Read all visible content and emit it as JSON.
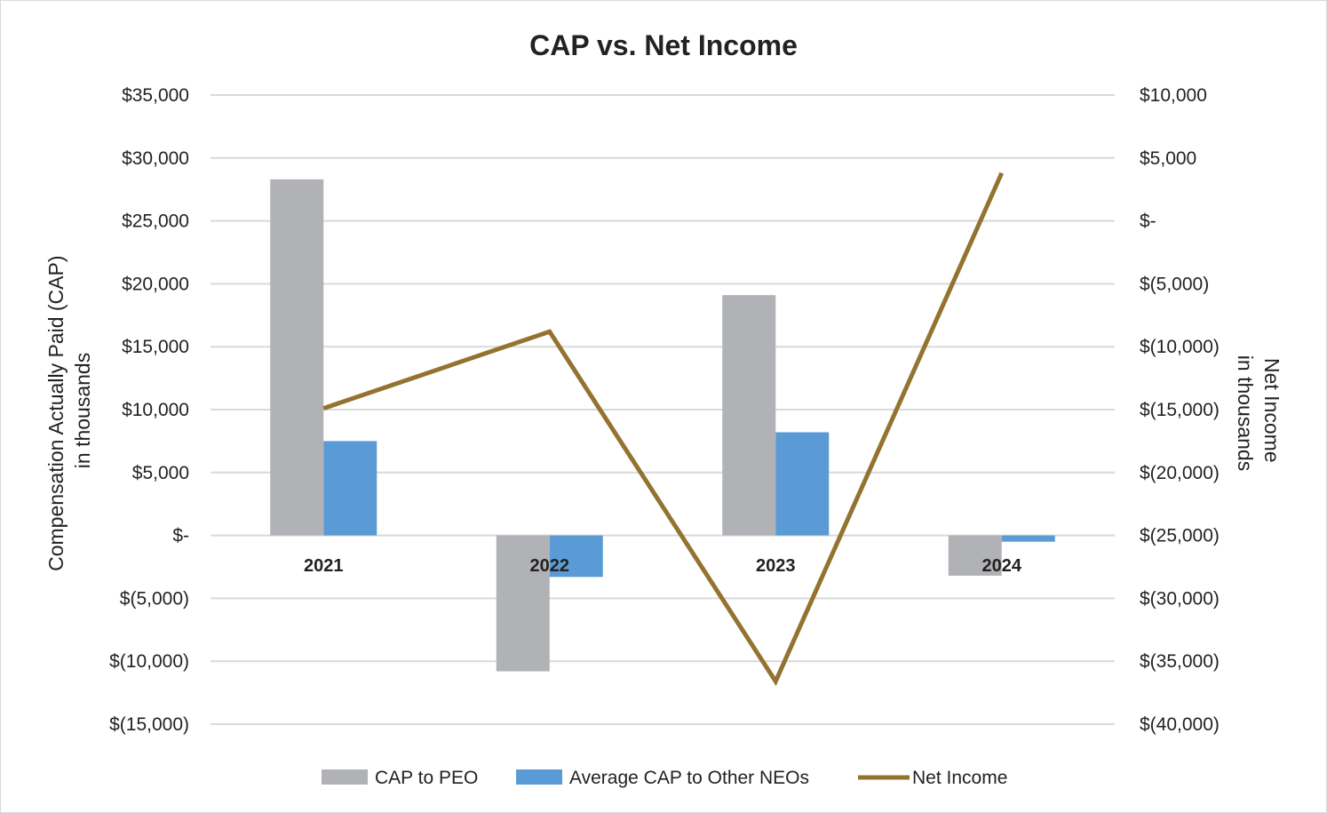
{
  "chart_data": {
    "type": "bar",
    "title": "CAP vs. Net Income",
    "categories": [
      "2021",
      "2022",
      "2023",
      "2024"
    ],
    "ylabel_left_lines": [
      "Compensation Actually Paid (CAP)",
      "in thousands"
    ],
    "ylabel_right_lines": [
      "Net Income",
      "in thousands"
    ],
    "ylim_left": [
      -15000,
      35000
    ],
    "ylim_right": [
      -40000,
      10000
    ],
    "left_ticks": [
      35000,
      30000,
      25000,
      20000,
      15000,
      10000,
      5000,
      0,
      -5000,
      -10000,
      -15000
    ],
    "left_tick_labels": [
      "$35,000",
      "$30,000",
      "$25,000",
      "$20,000",
      "$15,000",
      "$10,000",
      "$5,000",
      "$-",
      "$(5,000)",
      "$(10,000)",
      "$(15,000)"
    ],
    "right_ticks": [
      10000,
      5000,
      0,
      -5000,
      -10000,
      -15000,
      -20000,
      -25000,
      -30000,
      -35000,
      -40000
    ],
    "right_tick_labels": [
      "$10,000",
      "$5,000",
      "$-",
      "$(5,000)",
      "$(10,000)",
      "$(15,000)",
      "$(20,000)",
      "$(25,000)",
      "$(30,000)",
      "$(35,000)",
      "$(40,000)"
    ],
    "grid": true,
    "legend_position": "bottom",
    "series": [
      {
        "name": "CAP to PEO",
        "type": "bar",
        "axis": "left",
        "color": "#b1b2b5",
        "values": [
          28300,
          -10800,
          19100,
          -3200
        ]
      },
      {
        "name": "Average CAP to Other NEOs",
        "type": "bar",
        "axis": "left",
        "color": "#5b9bd5",
        "values": [
          7500,
          -3300,
          8200,
          -500
        ]
      },
      {
        "name": "Net Income",
        "type": "line",
        "axis": "right",
        "color": "#947331",
        "values": [
          -14900,
          -8800,
          -36600,
          3800
        ]
      }
    ]
  }
}
